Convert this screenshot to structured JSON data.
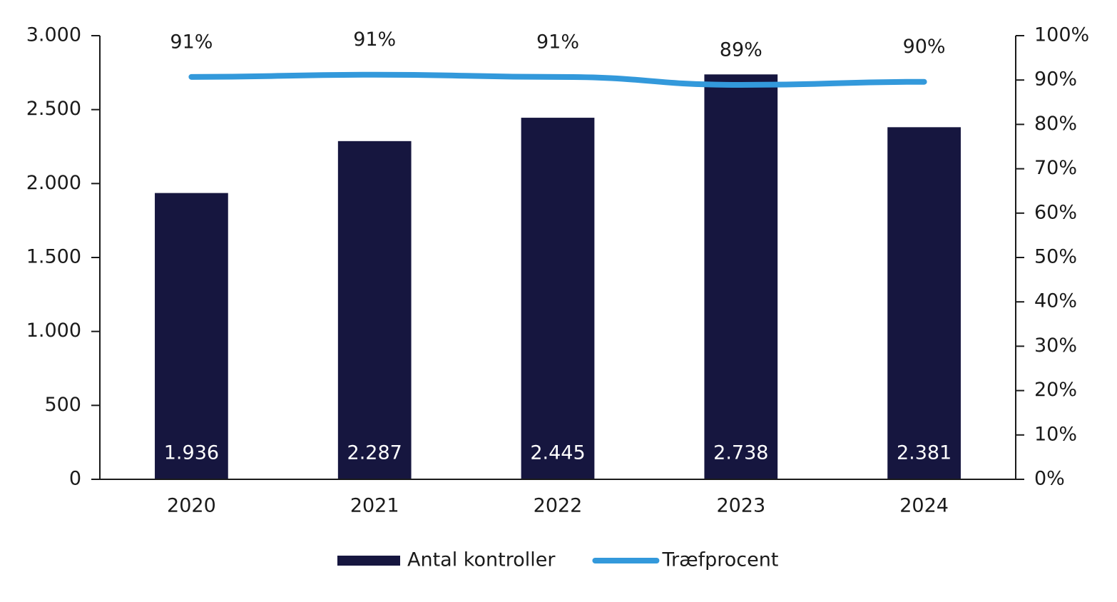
{
  "chart_data": {
    "type": "bar",
    "categories": [
      "2020",
      "2021",
      "2022",
      "2023",
      "2024"
    ],
    "series": [
      {
        "name": "Antal kontroller",
        "type": "bar",
        "color": "#16163f",
        "values": [
          1936,
          2287,
          2445,
          2738,
          2381
        ],
        "value_labels": [
          "1.936",
          "2.287",
          "2.445",
          "2.738",
          "2.381"
        ]
      },
      {
        "name": "Træfprocent",
        "type": "line",
        "axis": "y2",
        "color": "#3399db",
        "values": [
          90.7,
          91.2,
          90.7,
          88.9,
          89.6
        ],
        "value_labels": [
          "91%",
          "91%",
          "91%",
          "89%",
          "90%"
        ]
      }
    ],
    "ylim": [
      0,
      3000
    ],
    "yticks": [
      0,
      500,
      {
        "value": 1000,
        "label": "1.000"
      },
      {
        "value": 1500,
        "label": "1.500"
      },
      {
        "value": 2000,
        "label": "2.000"
      },
      {
        "value": 2500,
        "label": "2.500"
      },
      {
        "value": 3000,
        "label": "3.000"
      }
    ],
    "y2lim": [
      0,
      100
    ],
    "y2ticks": [
      {
        "value": 0,
        "label": "0%"
      },
      {
        "value": 10,
        "label": "10%"
      },
      {
        "value": 20,
        "label": "20%"
      },
      {
        "value": 30,
        "label": "30%"
      },
      {
        "value": 40,
        "label": "40%"
      },
      {
        "value": 50,
        "label": "50%"
      },
      {
        "value": 60,
        "label": "60%"
      },
      {
        "value": 70,
        "label": "70%"
      },
      {
        "value": 80,
        "label": "80%"
      },
      {
        "value": 90,
        "label": "90%"
      },
      {
        "value": 100,
        "label": "100%"
      }
    ],
    "legend": "bottom",
    "grid": false
  }
}
